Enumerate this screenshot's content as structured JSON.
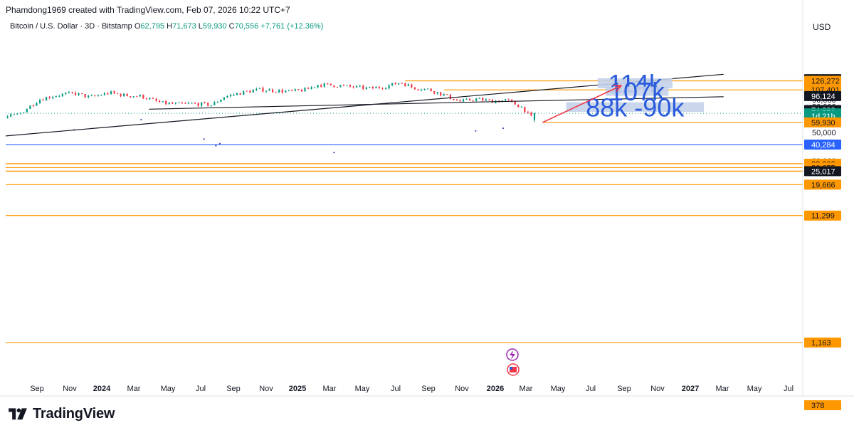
{
  "header": {
    "created_by": "Phamdong1969 created with TradingView.com, Feb 07, 2026 10:22 UTC+7",
    "symbol": "Bitcoin / U.S. Dollar · 3D · Bitstamp",
    "o_label": "O",
    "o_value": "62,795",
    "h_label": "H",
    "h_value": "71,673",
    "l_label": "L",
    "l_value": "59,930",
    "c_label": "C",
    "c_value": "70,556",
    "change": "+7,761 (+12.36%)",
    "currency": "USD"
  },
  "brand": {
    "name": "TradingView"
  },
  "colors": {
    "up": "#089981",
    "down": "#f23645",
    "orange": "#ff9800",
    "blue_line": "#2962ff",
    "box_bg": "#c3d2ea",
    "box_text": "#2a5bdc",
    "arrow": "#f23645"
  },
  "chart_data": {
    "type": "candlestick",
    "title": "Bitcoin / U.S. Dollar · 3D · Bitstamp",
    "y_scale": "log",
    "ylim": [
      340,
      160000
    ],
    "x_tick_labels": [
      "Sep",
      "Nov",
      "2024",
      "Mar",
      "May",
      "Jul",
      "Sep",
      "Nov",
      "2025",
      "Mar",
      "May",
      "Jul",
      "Sep",
      "Nov",
      "2026",
      "Mar",
      "May",
      "Jul",
      "Sep",
      "Nov",
      "2027",
      "Mar",
      "May",
      "Jul"
    ],
    "x_tick_bold": [
      false,
      false,
      true,
      false,
      false,
      false,
      false,
      false,
      true,
      false,
      false,
      false,
      false,
      false,
      true,
      false,
      false,
      false,
      false,
      false,
      true,
      false,
      false,
      false
    ],
    "y_tick_labels": [
      "120,000",
      "110,000",
      "100,000",
      "90,000",
      "80,000",
      "50,000",
      "30,000"
    ],
    "y_tick_values": [
      120000,
      110000,
      100000,
      90000,
      80000,
      50000,
      30000
    ],
    "price_path": [
      [
        2023.66,
        26000
      ],
      [
        2023.72,
        27200
      ],
      [
        2023.76,
        26200
      ],
      [
        2023.8,
        29500
      ],
      [
        2023.84,
        34500
      ],
      [
        2023.88,
        37200
      ],
      [
        2023.93,
        42500
      ],
      [
        2023.97,
        43000
      ],
      [
        2024.02,
        43500
      ],
      [
        2024.06,
        41500
      ],
      [
        2024.1,
        52000
      ],
      [
        2024.16,
        62000
      ],
      [
        2024.21,
        70000
      ],
      [
        2024.26,
        67000
      ],
      [
        2024.31,
        63500
      ],
      [
        2024.36,
        66500
      ],
      [
        2024.42,
        69000
      ],
      [
        2024.47,
        64000
      ],
      [
        2024.53,
        57000
      ],
      [
        2024.58,
        66000
      ],
      [
        2024.62,
        59000
      ],
      [
        2024.66,
        62000
      ],
      [
        2024.7,
        58000
      ],
      [
        2024.74,
        64000
      ],
      [
        2024.79,
        69500
      ],
      [
        2024.84,
        90000
      ],
      [
        2024.88,
        97000
      ],
      [
        2024.93,
        101000
      ],
      [
        2024.97,
        94000
      ],
      [
        2025.02,
        102000
      ],
      [
        2025.06,
        97000
      ],
      [
        2025.1,
        96000
      ],
      [
        2025.15,
        85000
      ],
      [
        2025.19,
        83000
      ],
      [
        2025.23,
        84000
      ],
      [
        2025.28,
        82000
      ],
      [
        2025.31,
        94500
      ],
      [
        2025.36,
        103000
      ],
      [
        2025.4,
        108000
      ],
      [
        2025.44,
        106000
      ],
      [
        2025.48,
        104000
      ],
      [
        2025.52,
        108000
      ],
      [
        2025.55,
        118000
      ],
      [
        2025.6,
        116000
      ],
      [
        2025.64,
        113000
      ],
      [
        2025.68,
        110000
      ],
      [
        2025.72,
        114000
      ],
      [
        2025.76,
        123000
      ],
      [
        2025.79,
        112000
      ],
      [
        2025.83,
        108000
      ],
      [
        2025.87,
        98000
      ],
      [
        2025.91,
        87000
      ],
      [
        2025.95,
        91000
      ],
      [
        2025.99,
        88000
      ],
      [
        2026.03,
        89000
      ],
      [
        2026.07,
        78000
      ],
      [
        2026.09,
        65000
      ],
      [
        2026.1,
        70556
      ]
    ],
    "visible_high": 126272,
    "visible_low": 59930,
    "horizontal_levels": [
      {
        "value": 126272,
        "label": "126,272",
        "color": "#ff9800",
        "x_start": 2025.77
      },
      {
        "value": 107401,
        "label": "107,401",
        "color": "#ff9800",
        "x_start": 2025.87
      },
      {
        "value": 59930,
        "label": "59,930",
        "color": "#ff9800",
        "x_start": 2026.12
      },
      {
        "value": 40284,
        "label": "40,284",
        "color": "#2962ff",
        "x_start": 2023.73
      },
      {
        "value": 28600,
        "label": "28,600",
        "color": "#ff9800",
        "x_start": 2023.58
      },
      {
        "value": 26675,
        "label": "26,675",
        "color": "#ff9800",
        "x_start": 2023.58
      },
      {
        "value": 25017,
        "label": "25,017",
        "color": "#ff9800",
        "x_start": 2023.58
      },
      {
        "value": 19666,
        "label": "19,666",
        "color": "#ff9800",
        "x_start": 2023.58
      },
      {
        "value": 11299,
        "label": "11,299",
        "color": "#ff9800",
        "x_start": 2023.58
      },
      {
        "value": 1163,
        "label": "1,163",
        "color": "#ff9800",
        "x_start": 2023.58
      },
      {
        "value": 378,
        "label": "378",
        "color": "#ff9800",
        "x_start": 2023.58
      }
    ],
    "price_tags": [
      {
        "label": "130,239",
        "value": 130239,
        "bg": "#131722",
        "fg": "#ffffff"
      },
      {
        "label": "126,272",
        "value": 126272,
        "bg": "#ff9800",
        "fg": "#131722"
      },
      {
        "label": "107,401",
        "value": 107401,
        "bg": "#ff9800",
        "fg": "#131722"
      },
      {
        "label": "96,124",
        "value": 96124,
        "bg": "#131722",
        "fg": "#ffffff"
      },
      {
        "label": "74,898",
        "value": 74898,
        "bg": "#131722",
        "fg": "#ffffff"
      },
      {
        "label": "70,556",
        "value": 70556,
        "bg": "#089981",
        "fg": "#ffffff"
      },
      {
        "label": "1d 21h",
        "value": 67200,
        "bg": "#089981",
        "fg": "#ffffff"
      },
      {
        "label": "59,930",
        "value": 59930,
        "bg": "#ff9800",
        "fg": "#131722"
      },
      {
        "label": "40,284",
        "value": 40284,
        "bg": "#2962ff",
        "fg": "#ffffff"
      },
      {
        "label": "28,600",
        "value": 28600,
        "bg": "#ff9800",
        "fg": "#131722"
      },
      {
        "label": "26,675",
        "value": 26675,
        "bg": "#ff9800",
        "fg": "#131722"
      },
      {
        "label": "25,017",
        "value": 25017,
        "bg": "#131722",
        "fg": "#ffffff"
      },
      {
        "label": "19,666",
        "value": 19666,
        "bg": "#ff9800",
        "fg": "#131722"
      },
      {
        "label": "11,299",
        "value": 11299,
        "bg": "#ff9800",
        "fg": "#131722"
      },
      {
        "label": "1,163",
        "value": 1163,
        "bg": "#ff9800",
        "fg": "#131722"
      },
      {
        "label": "378",
        "value": 378,
        "bg": "#ff9800",
        "fg": "#131722"
      }
    ],
    "trendlines": [
      {
        "name": "long-uptrend",
        "from": [
          2023.71,
          25000
        ],
        "to": [
          2026.58,
          142000
        ]
      },
      {
        "name": "neckline",
        "from": [
          2025.12,
          76000
        ],
        "to": [
          2026.58,
          95000
        ]
      }
    ],
    "arrow": {
      "from": [
        2026.12,
        59930
      ],
      "to": [
        2026.32,
        116000
      ]
    },
    "annotations": [
      {
        "text": "114k",
        "x": [
          2026.26,
          2026.45
        ],
        "y": [
          132000,
          110500
        ]
      },
      {
        "text": "107k",
        "x": [
          2026.28,
          2026.44
        ],
        "y": [
          114000,
          96500
        ]
      },
      {
        "text": "88k -90k",
        "x": [
          2026.18,
          2026.53
        ],
        "y": [
          86000,
          72500
        ]
      },
      {
        "text": "2",
        "x": [
          2023.95,
          2023.98
        ],
        "y": [
          36000,
          29800
        ]
      }
    ],
    "stray_dots": [
      [
        2023.73,
        10800
      ],
      [
        2024.93,
        52500
      ],
      [
        2025.1,
        63000
      ],
      [
        2025.26,
        44500
      ],
      [
        2025.29,
        39500
      ],
      [
        2025.3,
        41000
      ],
      [
        2025.59,
        35000
      ],
      [
        2025.95,
        51500
      ],
      [
        2026.02,
        54000
      ]
    ]
  }
}
